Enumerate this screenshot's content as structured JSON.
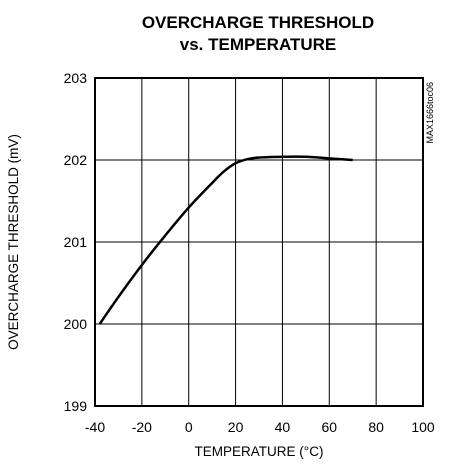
{
  "chart_data": {
    "type": "line",
    "title_line1": "OVERCHARGE THRESHOLD",
    "title_line2": "vs. TEMPERATURE",
    "xlabel": "TEMPERATURE (°C)",
    "ylabel": "OVERCHARGE THRESHOLD (mV)",
    "side_code": "MAX1666toc06",
    "xlim": [
      -40,
      100
    ],
    "ylim": [
      199,
      203
    ],
    "x_ticks": [
      -40,
      -20,
      0,
      20,
      40,
      60,
      80,
      100
    ],
    "x_tick_labels": [
      "-40",
      "-20",
      "0",
      "20",
      "40",
      "60",
      "80",
      "100"
    ],
    "y_ticks": [
      199,
      200,
      201,
      202,
      203
    ],
    "y_tick_labels": [
      "199",
      "200",
      "201",
      "202",
      "203"
    ],
    "grid": true,
    "series": [
      {
        "x": [
          -38,
          -30,
          -20,
          -10,
          0,
          10,
          15,
          20,
          25,
          30,
          40,
          50,
          60,
          70
        ],
        "y": [
          200.0,
          200.33,
          200.72,
          201.08,
          201.42,
          201.72,
          201.86,
          201.96,
          202.01,
          202.03,
          202.04,
          202.04,
          202.02,
          202.0
        ]
      }
    ]
  }
}
